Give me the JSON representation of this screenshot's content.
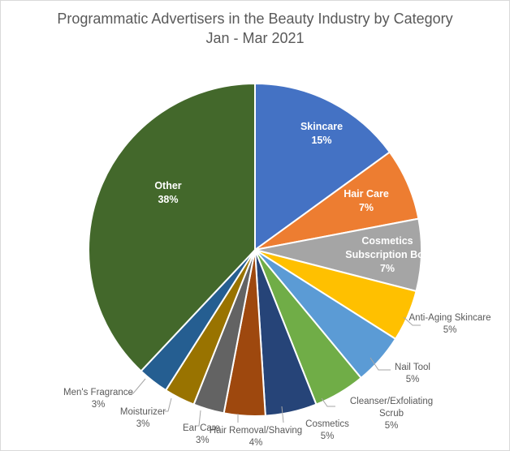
{
  "chart_data": {
    "type": "pie",
    "title": "Programmatic Advertisers in the Beauty Industry by Category",
    "subtitle": "Jan - Mar 2021",
    "categories": [
      "Skincare",
      "Hair Care",
      "Cosmetics Subscription Box",
      "Anti-Aging Skincare",
      "Nail Tool",
      "Cleanser/Exfoliating Scrub",
      "Cosmetics",
      "Hair Removal/Shaving",
      "Ear Care",
      "Moisturizer",
      "Men's Fragrance",
      "Other"
    ],
    "values": [
      15,
      7,
      7,
      5,
      5,
      5,
      5,
      4,
      3,
      3,
      3,
      38
    ],
    "labels": [
      "15%",
      "7%",
      "7%",
      "5%",
      "5%",
      "5%",
      "5%",
      "4%",
      "3%",
      "3%",
      "3%",
      "38%"
    ],
    "colors": [
      "#4472C4",
      "#ED7D31",
      "#A5A5A5",
      "#FFC000",
      "#5B9BD5",
      "#70AD47",
      "#264478",
      "#9E480E",
      "#636363",
      "#997300",
      "#255E91",
      "#43682B"
    ],
    "legend": "none (data labels)"
  }
}
